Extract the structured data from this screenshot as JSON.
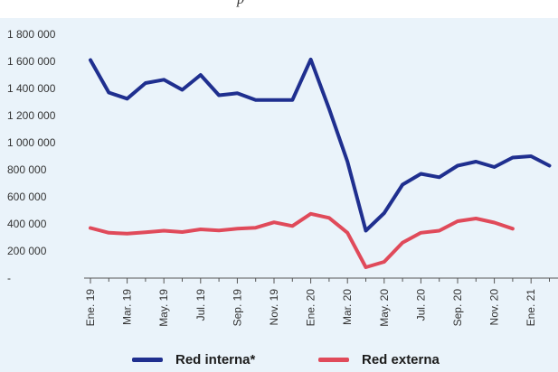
{
  "header_fragment": "p",
  "chart_data": {
    "type": "line",
    "x": [
      "Ene. 19",
      "Feb. 19",
      "Mar. 19",
      "Abr. 19",
      "May. 19",
      "Jun. 19",
      "Jul. 19",
      "Ago. 19",
      "Sep. 19",
      "Oct. 19",
      "Nov. 19",
      "Dic. 19",
      "Ene. 20",
      "Feb. 20",
      "Mar. 20",
      "Abr. 20",
      "May. 20",
      "Jun. 20",
      "Jul. 20",
      "Ago. 20",
      "Sep. 20",
      "Oct. 20",
      "Nov. 20",
      "Dic. 20",
      "Ene. 21",
      "Feb. 21"
    ],
    "x_tick_labels": [
      "Ene. 19",
      "Mar. 19",
      "May. 19",
      "Jul. 19",
      "Sep. 19",
      "Nov. 19",
      "Ene. 20",
      "Mar. 20",
      "May. 20",
      "Jul. 20",
      "Sep. 20",
      "Nov. 20",
      "Ene. 21"
    ],
    "y_tick_labels": [
      "-",
      "200 000",
      "400 000",
      "600 000",
      "800 000",
      "1 000 000",
      "1 200 000",
      "1 400 000",
      "1 600 000",
      "1 800 000"
    ],
    "ylim": [
      0,
      1800000
    ],
    "series": [
      {
        "name": "Red interna*",
        "color": "#1f2f8f",
        "values": [
          1610000,
          1370000,
          1325000,
          1440000,
          1465000,
          1390000,
          1500000,
          1350000,
          1365000,
          1315000,
          1315000,
          1315000,
          1615000,
          1250000,
          860000,
          350000,
          480000,
          690000,
          770000,
          745000,
          830000,
          860000,
          820000,
          890000,
          900000,
          830000
        ]
      },
      {
        "name": "Red externa",
        "color": "#e04a5a",
        "values": [
          370000,
          335000,
          328000,
          338000,
          350000,
          340000,
          360000,
          352000,
          365000,
          372000,
          412000,
          385000,
          475000,
          445000,
          335000,
          80000,
          120000,
          262000,
          335000,
          350000,
          420000,
          440000,
          410000,
          365000,
          null,
          null
        ]
      }
    ],
    "legend": [
      "Red interna*",
      "Red externa"
    ],
    "legend_position": "bottom",
    "grid": false,
    "title": "",
    "xlabel": "",
    "ylabel": ""
  }
}
